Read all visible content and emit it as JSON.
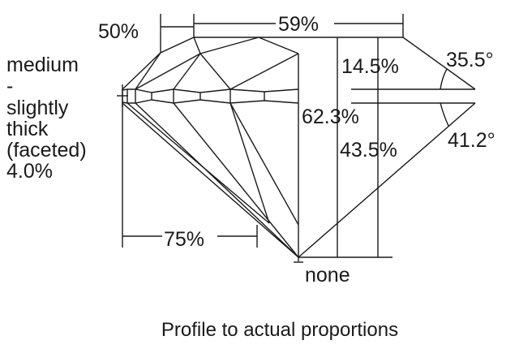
{
  "labels": {
    "star_length": "50%",
    "table": "59%",
    "girdle_lines": [
      "medium",
      "-",
      "slightly",
      "thick",
      "(faceted)",
      "4.0%"
    ],
    "crown_height": "14.5%",
    "crown_angle": "35.5°",
    "total_depth": "62.3%",
    "pavilion_depth": "43.5%",
    "pavilion_angle": "41.2°",
    "lower_half": "75%",
    "culet": "none"
  },
  "caption": "Profile to actual proportions",
  "colors": {
    "line": "#1a1a1a",
    "background": "#ffffff"
  }
}
